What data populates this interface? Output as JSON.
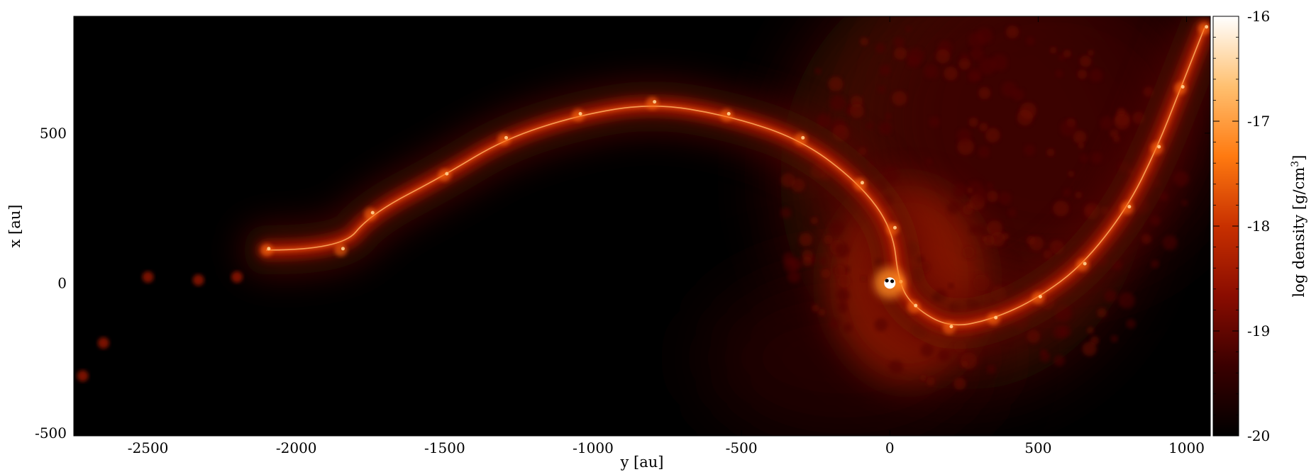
{
  "chart_data": {
    "type": "heatmap",
    "xlabel": "y [au]",
    "ylabel": "x [au]",
    "xlim": [
      -2750,
      1080
    ],
    "ylim": [
      -510,
      890
    ],
    "xticks": [
      -2500,
      -2000,
      -1500,
      -1000,
      -500,
      0,
      500,
      1000
    ],
    "xtick_labels": [
      "-2500",
      "-2000",
      "-1500",
      "-1000",
      "-500",
      "0",
      "500",
      "1000"
    ],
    "yticks": [
      -500,
      0,
      500
    ],
    "ytick_labels": [
      "-500",
      "0",
      "500"
    ],
    "colorbar": {
      "label_main": "log density [g/cm",
      "label_sup": "3",
      "label_end": "]",
      "range": [
        -20,
        -16
      ],
      "ticks": [
        -20,
        -19,
        -18,
        -17,
        -16
      ],
      "tick_labels": [
        "-20",
        "-19",
        "-18",
        "-17",
        "-16"
      ],
      "colormap": [
        "#000000",
        "#3a0000",
        "#8a0c00",
        "#c83000",
        "#ff7a10",
        "#ffc070",
        "#ffffff"
      ]
    },
    "features": {
      "central_source": {
        "x": 0,
        "y": 0
      },
      "stars": [
        {
          "x": -10,
          "y": 8
        },
        {
          "x": 8,
          "y": 6
        }
      ],
      "spiral_arm_inner": [
        [
          -2100,
          110
        ],
        [
          -1850,
          110
        ],
        [
          -1750,
          230
        ],
        [
          -1500,
          360
        ],
        [
          -1300,
          480
        ],
        [
          -1050,
          560
        ],
        [
          -800,
          600
        ],
        [
          -550,
          560
        ],
        [
          -300,
          480
        ],
        [
          -100,
          330
        ],
        [
          10,
          180
        ],
        [
          30,
          0
        ],
        [
          80,
          -80
        ],
        [
          200,
          -150
        ],
        [
          350,
          -120
        ],
        [
          500,
          -50
        ],
        [
          650,
          60
        ],
        [
          800,
          250
        ],
        [
          900,
          450
        ],
        [
          980,
          650
        ],
        [
          1060,
          850
        ]
      ],
      "diffuse_envelope_center": {
        "x": 250,
        "y": 350
      }
    }
  }
}
